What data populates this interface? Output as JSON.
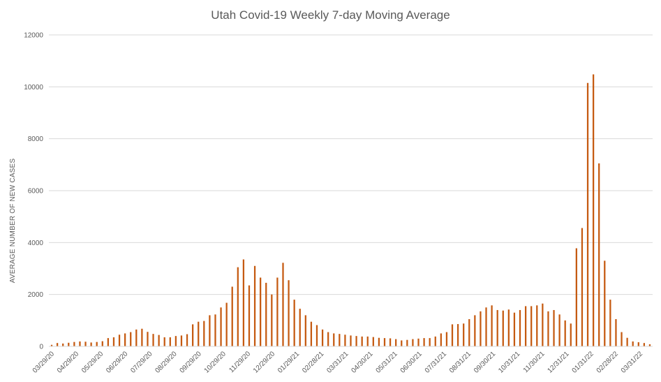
{
  "chart_data": {
    "type": "bar",
    "title": "Utah Covid-19 Weekly 7-day Moving Average",
    "xlabel": "",
    "ylabel": "AVERAGE NUMBER OF NEW  CASES",
    "ylim": [
      0,
      12000
    ],
    "yticks": [
      0,
      2000,
      4000,
      6000,
      8000,
      10000,
      12000
    ],
    "grid": true,
    "legend": "none",
    "bar_color": "#c55a11",
    "x_tick_labels": [
      "03/29/20",
      "04/29/20",
      "05/29/20",
      "06/29/20",
      "07/29/20",
      "08/29/20",
      "09/29/20",
      "10/29/20",
      "11/29/20",
      "12/29/20",
      "01/29/21",
      "02/28/21",
      "03/31/21",
      "04/30/21",
      "05/31/21",
      "06/30/21",
      "07/31/21",
      "08/31/21",
      "09/30/21",
      "10/31/21",
      "11/30/21",
      "12/31/21",
      "01/31/22",
      "02/28/22",
      "03/31/22"
    ],
    "values": [
      60,
      130,
      110,
      140,
      170,
      190,
      180,
      150,
      170,
      200,
      320,
      350,
      450,
      500,
      550,
      650,
      680,
      560,
      480,
      440,
      350,
      350,
      400,
      420,
      470,
      850,
      950,
      980,
      1200,
      1230,
      1500,
      1680,
      2300,
      3050,
      3350,
      2350,
      3100,
      2650,
      2450,
      2000,
      2650,
      3220,
      2550,
      1800,
      1450,
      1200,
      950,
      820,
      650,
      550,
      500,
      480,
      450,
      420,
      400,
      380,
      380,
      360,
      330,
      320,
      310,
      280,
      230,
      250,
      280,
      300,
      320,
      320,
      380,
      500,
      550,
      850,
      860,
      880,
      1050,
      1200,
      1350,
      1500,
      1580,
      1400,
      1380,
      1420,
      1300,
      1400,
      1550,
      1550,
      1580,
      1650,
      1350,
      1400,
      1230,
      1000,
      880,
      3780,
      4560,
      10150,
      10480,
      7050,
      3300,
      1800,
      1050,
      550,
      330,
      190,
      160,
      130,
      80
    ]
  }
}
